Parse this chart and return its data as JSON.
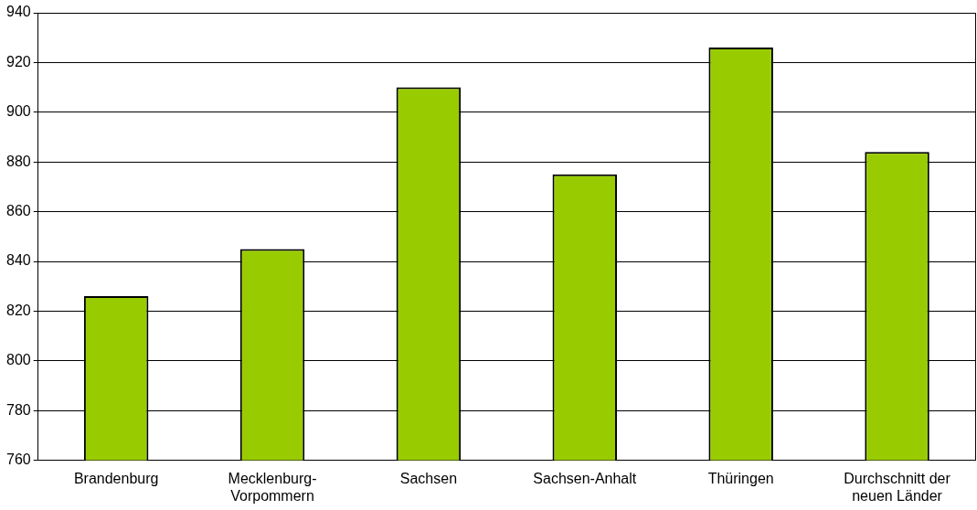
{
  "chart_data": {
    "type": "bar",
    "categories": [
      "Brandenburg",
      "Mecklenburg-Vorpommern",
      "Sachsen",
      "Sachsen-Anhalt",
      "Thüringen",
      "Durchschnitt der neuen Länder"
    ],
    "values": [
      826,
      845,
      910,
      875,
      926,
      884
    ],
    "color": "#99cc00",
    "ylim": [
      760,
      940
    ],
    "yticks": [
      760,
      780,
      800,
      820,
      840,
      860,
      880,
      900,
      920,
      940
    ],
    "grid": "y",
    "legend": false
  }
}
